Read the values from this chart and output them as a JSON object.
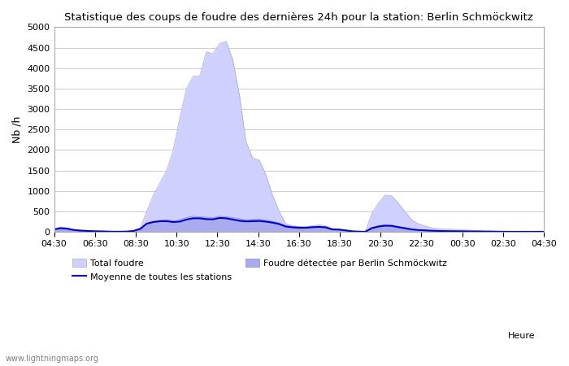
{
  "title": "Statistique des coups de foudre des dernières 24h pour la station: Berlin Schmöckwitz",
  "ylabel": "Nb /h",
  "xlabel": "Heure",
  "ylim": [
    0,
    5000
  ],
  "yticks": [
    0,
    500,
    1000,
    1500,
    2000,
    2500,
    3000,
    3500,
    4000,
    4500,
    5000
  ],
  "xtick_labels": [
    "04:30",
    "06:30",
    "08:30",
    "10:30",
    "12:30",
    "14:30",
    "16:30",
    "18:30",
    "20:30",
    "22:30",
    "00:30",
    "02:30",
    "04:30"
  ],
  "watermark": "www.lightningmaps.org",
  "legend": {
    "total_foudre_label": "Total foudre",
    "total_foudre_color": "#ccccff",
    "detected_label": "Foudre détectée par Berlin Schmöckwitz",
    "detected_color": "#aaaaee",
    "moyenne_label": "Moyenne de toutes les stations",
    "moyenne_color": "#0000cc"
  },
  "background_color": "#ffffff",
  "plot_bg_color": "#ffffff",
  "grid_color": "#cccccc",
  "total_foudre": [
    80,
    120,
    100,
    60,
    40,
    30,
    20,
    15,
    10,
    5,
    5,
    10,
    30,
    100,
    500,
    900,
    1200,
    1500,
    2000,
    2800,
    3500,
    3800,
    3800,
    4400,
    4350,
    4600,
    4650,
    4200,
    3350,
    2200,
    1800,
    1750,
    1400,
    900,
    500,
    200,
    150,
    130,
    120,
    150,
    170,
    150,
    80,
    70,
    50,
    20,
    10,
    5,
    450,
    700,
    900,
    880,
    700,
    500,
    300,
    200,
    150,
    100,
    80,
    70,
    65,
    60,
    50,
    40,
    30,
    20,
    20,
    15,
    10,
    8,
    5,
    3,
    2,
    2,
    5
  ],
  "detected_foudre": [
    30,
    50,
    40,
    20,
    10,
    8,
    5,
    5,
    3,
    2,
    2,
    3,
    10,
    30,
    200,
    250,
    280,
    300,
    260,
    300,
    350,
    380,
    370,
    360,
    350,
    380,
    370,
    350,
    320,
    295,
    310,
    310,
    290,
    260,
    220,
    150,
    130,
    120,
    115,
    130,
    140,
    120,
    70,
    60,
    40,
    15,
    8,
    3,
    100,
    150,
    170,
    165,
    130,
    100,
    70,
    50,
    40,
    30,
    25,
    20,
    18,
    16,
    14,
    12,
    10,
    8,
    7,
    5,
    4,
    3,
    2,
    2,
    2,
    2,
    3
  ],
  "moyenne": [
    60,
    90,
    75,
    45,
    30,
    22,
    15,
    12,
    8,
    4,
    4,
    7,
    22,
    70,
    200,
    240,
    260,
    260,
    240,
    250,
    300,
    330,
    330,
    310,
    305,
    340,
    330,
    300,
    270,
    255,
    260,
    265,
    250,
    225,
    190,
    130,
    110,
    100,
    100,
    112,
    120,
    110,
    60,
    55,
    35,
    12,
    6,
    2,
    90,
    130,
    150,
    145,
    115,
    88,
    60,
    44,
    36,
    26,
    22,
    18,
    16,
    14,
    12,
    10,
    9,
    7,
    6,
    4,
    3,
    2,
    2,
    2,
    2,
    2,
    2
  ]
}
